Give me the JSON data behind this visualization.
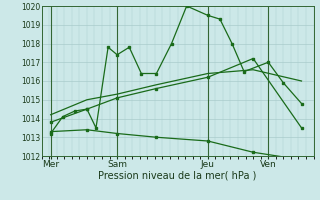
{
  "xlabel": "Pression niveau de la mer( hPa )",
  "bg_color": "#cce8e8",
  "grid_color": "#aacccc",
  "line_color": "#1a6b1a",
  "vline_color": "#336633",
  "ylim": [
    1012,
    1020
  ],
  "yticks": [
    1012,
    1013,
    1014,
    1015,
    1016,
    1017,
    1018,
    1019,
    1020
  ],
  "xlim": [
    0,
    9.0
  ],
  "xtick_labels": [
    "Mer",
    "Sam",
    "Jeu",
    "Ven"
  ],
  "xtick_positions": [
    0.3,
    2.5,
    5.5,
    7.5
  ],
  "vlines": [
    0.3,
    2.5,
    5.5,
    7.5
  ],
  "series1_x": [
    0.3,
    0.7,
    1.1,
    1.5,
    1.8,
    2.2,
    2.5,
    2.9,
    3.3,
    3.8,
    4.3,
    4.8,
    5.5,
    5.9,
    6.3,
    6.7,
    7.5,
    8.0,
    8.6
  ],
  "series1_y": [
    1013.2,
    1014.1,
    1014.4,
    1014.5,
    1013.5,
    1017.8,
    1017.4,
    1017.8,
    1016.4,
    1016.4,
    1018.0,
    1020.0,
    1019.5,
    1019.3,
    1018.0,
    1016.5,
    1017.0,
    1015.9,
    1014.8
  ],
  "series2_x": [
    0.3,
    1.5,
    2.5,
    3.8,
    5.5,
    7.0,
    8.6
  ],
  "series2_y": [
    1014.2,
    1015.0,
    1015.3,
    1015.8,
    1016.4,
    1016.6,
    1016.0
  ],
  "series3_x": [
    0.3,
    1.5,
    2.5,
    3.8,
    5.5,
    7.0,
    8.6
  ],
  "series3_y": [
    1013.8,
    1014.5,
    1015.1,
    1015.6,
    1016.2,
    1017.2,
    1013.5
  ],
  "series4_x": [
    0.3,
    1.5,
    2.5,
    3.8,
    5.5,
    7.0,
    8.6
  ],
  "series4_y": [
    1013.3,
    1013.4,
    1013.2,
    1013.0,
    1012.8,
    1012.2,
    1011.8
  ],
  "ytick_fontsize": 5.5,
  "xtick_fontsize": 6.5,
  "xlabel_fontsize": 7.0,
  "marker_size": 2.0,
  "line_width": 0.9
}
